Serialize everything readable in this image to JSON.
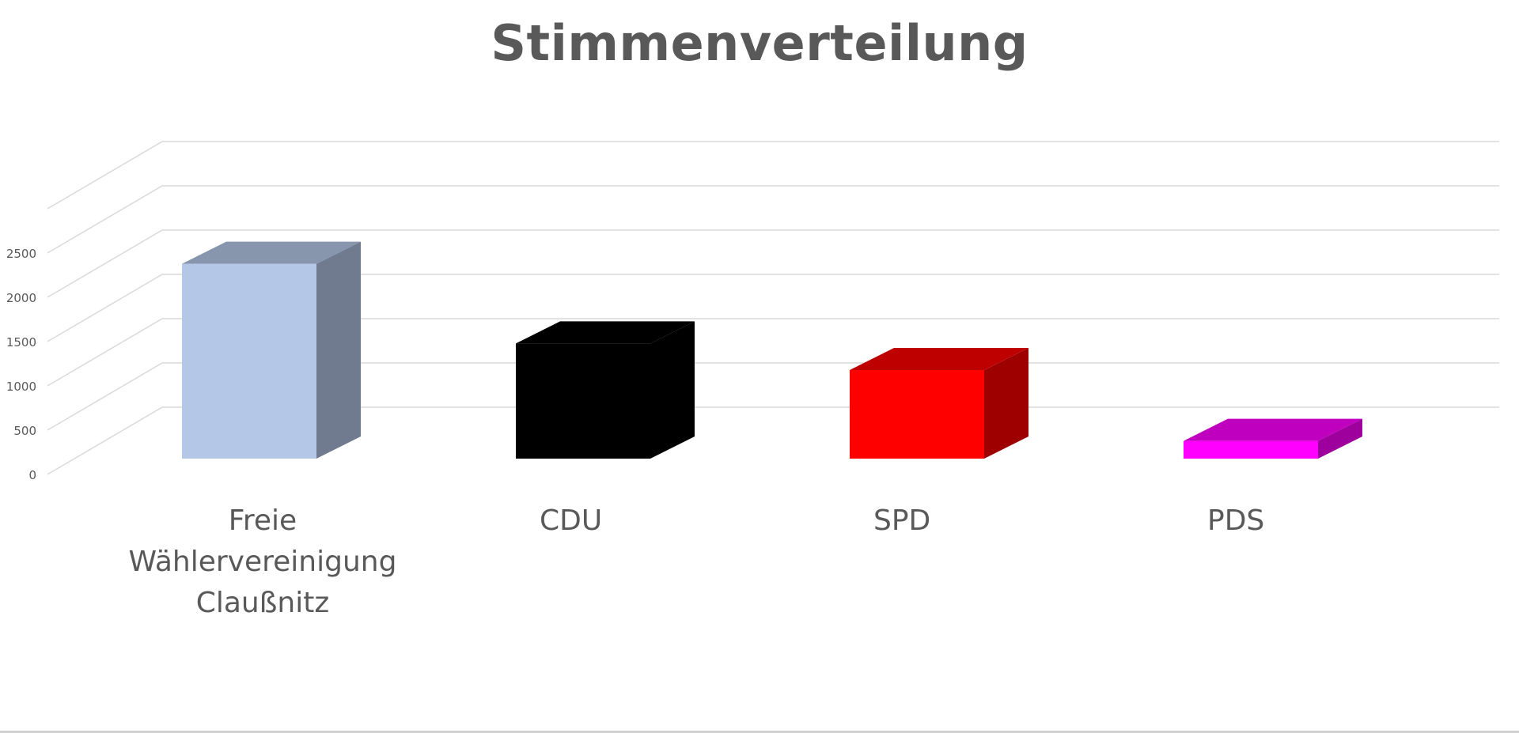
{
  "chart_data": {
    "type": "bar",
    "title": "Stimmenverteilung",
    "categories": [
      "Freie Wählervereinigung Claußnitz",
      "CDU",
      "SPD",
      "PDS"
    ],
    "category_lines": [
      [
        "Freie",
        "Wählervereinigung",
        "Claußnitz"
      ],
      [
        "CDU"
      ],
      [
        "SPD"
      ],
      [
        "PDS"
      ]
    ],
    "values": [
      2200,
      1300,
      1000,
      200
    ],
    "colors": [
      "#b4c7e7",
      "#000000",
      "#ff0000",
      "#ff00ff"
    ],
    "ylim": [
      0,
      3000
    ],
    "yticks": [
      0,
      500,
      1000,
      1500,
      2000,
      2500
    ],
    "grid": true,
    "three_d": true,
    "xlabel": "",
    "ylabel": ""
  }
}
